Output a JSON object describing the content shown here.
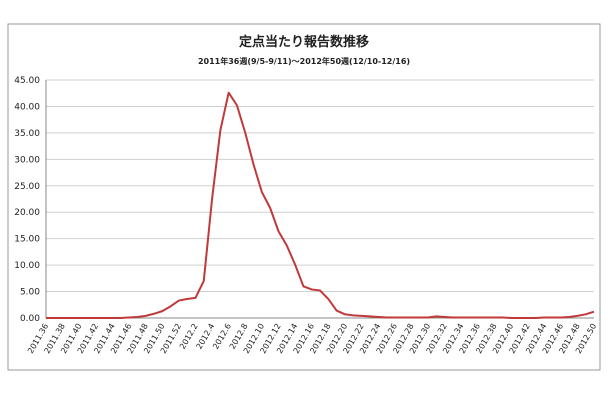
{
  "chart_data": {
    "type": "line",
    "title": "定点当たり報告数推移",
    "subtitle": "2011年36週(9/5-9/11)～2012年50週(12/10-12/16)",
    "categories": [
      "2011.36",
      null,
      "2011.38",
      null,
      "2011.40",
      null,
      "2011.42",
      null,
      "2011.44",
      null,
      "2011.46",
      null,
      "2011.48",
      null,
      "2011.50",
      null,
      "2011.52",
      null,
      "2012.2",
      null,
      "2012.4",
      null,
      "2012.6",
      null,
      "2012.8",
      null,
      "2012.10",
      null,
      "2012.12",
      null,
      "2012.14",
      null,
      "2012.16",
      null,
      "2012.18",
      null,
      "2012.20",
      null,
      "2012.22",
      null,
      "2012.24",
      null,
      "2012.26",
      null,
      "2012.28",
      null,
      "2012.30",
      null,
      "2012.32",
      null,
      "2012.34",
      null,
      "2012.36",
      null,
      "2012.38",
      null,
      "2012.40",
      null,
      "2012.42",
      null,
      "2012.44",
      null,
      "2012.46",
      null,
      "2012.48",
      null,
      "2012.50"
    ],
    "series": [
      {
        "name": "定点当たり報告数",
        "color": "#c0393b",
        "values": [
          0.0,
          0.0,
          0.0,
          0.0,
          0.0,
          0.0,
          0.0,
          0.0,
          0.0,
          0.0,
          0.1,
          0.2,
          0.4,
          0.8,
          1.3,
          2.2,
          3.3,
          3.6,
          3.8,
          7.0,
          22.5,
          35.5,
          42.6,
          40.2,
          35.0,
          29.0,
          23.8,
          20.8,
          16.4,
          13.7,
          10.1,
          6.0,
          5.4,
          5.2,
          3.6,
          1.4,
          0.7,
          0.5,
          0.4,
          0.3,
          0.2,
          0.1,
          0.1,
          0.1,
          0.1,
          0.1,
          0.1,
          0.3,
          0.2,
          0.1,
          0.1,
          0.1,
          0.1,
          0.1,
          0.1,
          0.1,
          0.0,
          0.0,
          0.0,
          0.0,
          0.1,
          0.1,
          0.1,
          0.2,
          0.4,
          0.7,
          1.2
        ]
      }
    ],
    "ylim": [
      0,
      45
    ],
    "yticks": [
      {
        "value": 0,
        "label": "0.00"
      },
      {
        "value": 5,
        "label": "5.00"
      },
      {
        "value": 10,
        "label": "10.00"
      },
      {
        "value": 15,
        "label": "15.00"
      },
      {
        "value": 20,
        "label": "20.00"
      },
      {
        "value": 25,
        "label": "25.00"
      },
      {
        "value": 30,
        "label": "30.00"
      },
      {
        "value": 35,
        "label": "35.00"
      },
      {
        "value": 40,
        "label": "40.00"
      },
      {
        "value": 45,
        "label": "45.00"
      }
    ],
    "grid": true
  }
}
